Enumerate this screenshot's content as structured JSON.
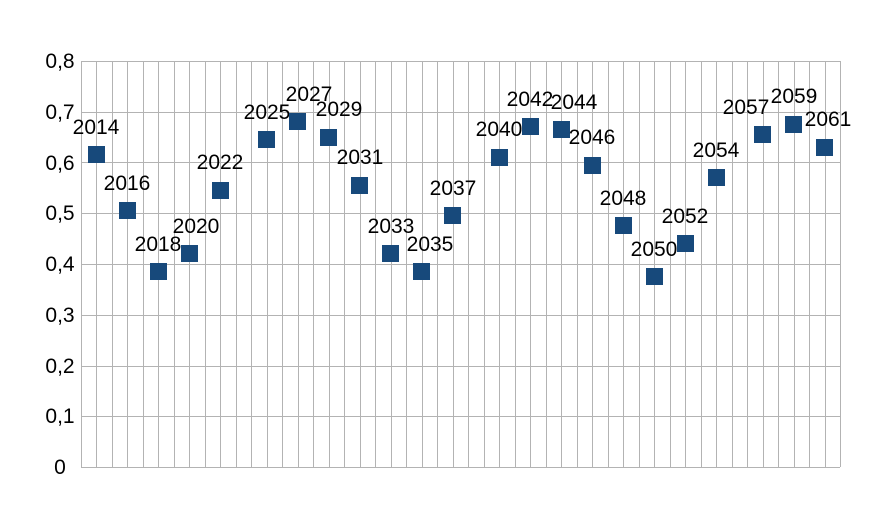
{
  "chart_data": {
    "type": "scatter",
    "title": "",
    "xlabel": "",
    "ylabel": "",
    "legend": "none",
    "grid": "both",
    "decimal_separator": ",",
    "x_axis": {
      "min": 2013,
      "max": 2062,
      "gridline_step": 1,
      "tick_labels": []
    },
    "y_axis": {
      "min": 0,
      "max": 0.8,
      "gridline_step": 0.1,
      "ticks": [
        {
          "label": "0,8",
          "value": 0.8
        },
        {
          "label": "0,7",
          "value": 0.7
        },
        {
          "label": "0,6",
          "value": 0.6
        },
        {
          "label": "0,5",
          "value": 0.5
        },
        {
          "label": "0,4",
          "value": 0.4
        },
        {
          "label": "0,3",
          "value": 0.3
        },
        {
          "label": "0,2",
          "value": 0.2
        },
        {
          "label": "0,1",
          "value": 0.1
        },
        {
          "label": "0",
          "value": 0
        }
      ]
    },
    "colors": {
      "marker": "#17497b",
      "gridline": "#b3b3b3",
      "label": "#000000",
      "background": "#ffffff"
    },
    "series": [
      {
        "name": "",
        "marker_shape": "square",
        "points": [
          {
            "x": 2014,
            "y": 0.615,
            "label": "2014"
          },
          {
            "x": 2016,
            "y": 0.505,
            "label": "2016"
          },
          {
            "x": 2018,
            "y": 0.385,
            "label": "2018"
          },
          {
            "x": 2020,
            "y": 0.42,
            "label": "2020",
            "label_dx": 7
          },
          {
            "x": 2022,
            "y": 0.545,
            "label": "2022"
          },
          {
            "x": 2025,
            "y": 0.645,
            "label": "2025"
          },
          {
            "x": 2027,
            "y": 0.68,
            "label": "2027",
            "label_dx": 11
          },
          {
            "x": 2029,
            "y": 0.65,
            "label": "2029",
            "label_dx": 10
          },
          {
            "x": 2031,
            "y": 0.555,
            "label": "2031"
          },
          {
            "x": 2033,
            "y": 0.42,
            "label": "2033"
          },
          {
            "x": 2035,
            "y": 0.385,
            "label": "2035",
            "label_dx": 8
          },
          {
            "x": 2037,
            "y": 0.495,
            "label": "2037"
          },
          {
            "x": 2040,
            "y": 0.61,
            "label": "2040"
          },
          {
            "x": 2042,
            "y": 0.67,
            "label": "2042"
          },
          {
            "x": 2044,
            "y": 0.665,
            "label": "2044",
            "label_dx": 13
          },
          {
            "x": 2046,
            "y": 0.595,
            "label": "2046"
          },
          {
            "x": 2048,
            "y": 0.475,
            "label": "2048"
          },
          {
            "x": 2050,
            "y": 0.375,
            "label": "2050"
          },
          {
            "x": 2052,
            "y": 0.44,
            "label": "2052"
          },
          {
            "x": 2054,
            "y": 0.57,
            "label": "2054"
          },
          {
            "x": 2057,
            "y": 0.655,
            "label": "2057",
            "label_dx": -17
          },
          {
            "x": 2059,
            "y": 0.675,
            "label": "2059"
          },
          {
            "x": 2061,
            "y": 0.63,
            "label": "2061",
            "label_dx": 3
          }
        ]
      }
    ]
  }
}
